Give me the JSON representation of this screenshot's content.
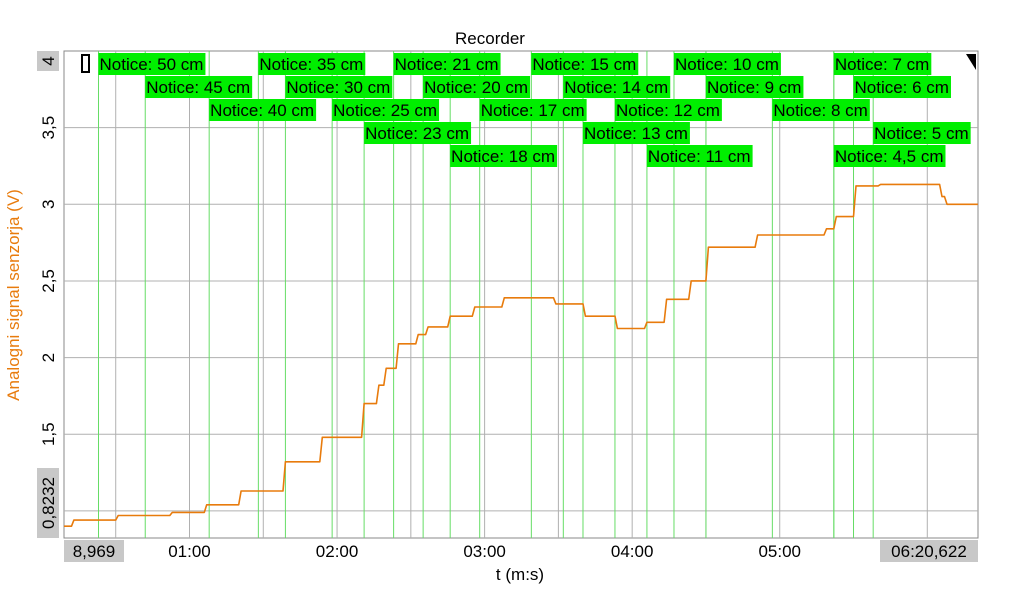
{
  "chart_data": {
    "type": "line",
    "title": "Recorder",
    "xlabel": "t (m:s)",
    "ylabel": "Analogni signal senzorja (V)",
    "x_unit": "seconds",
    "xlim": [
      8.969,
      380.622
    ],
    "ylim": [
      0.8232,
      4.0
    ],
    "x_ticks": [
      {
        "label": "8,969",
        "value": 8.969,
        "highlight": true
      },
      {
        "label": "01:00",
        "value": 60
      },
      {
        "label": "02:00",
        "value": 120
      },
      {
        "label": "03:00",
        "value": 180
      },
      {
        "label": "04:00",
        "value": 240
      },
      {
        "label": "05:00",
        "value": 300
      },
      {
        "label": "06:20,622",
        "value": 380.622,
        "highlight": true
      }
    ],
    "y_ticks": [
      {
        "label": "0,8232",
        "value": 0.8232,
        "highlight": true
      },
      {
        "label": "1,5",
        "value": 1.5
      },
      {
        "label": "2",
        "value": 2.0
      },
      {
        "label": "2,5",
        "value": 2.5
      },
      {
        "label": "3",
        "value": 3.0
      },
      {
        "label": "3,5",
        "value": 3.5
      },
      {
        "label": "4",
        "value": 4.0,
        "highlight": true
      }
    ],
    "x_gridlines": [
      30,
      60,
      90,
      120,
      150,
      180,
      210,
      240,
      270,
      300,
      330,
      360
    ],
    "y_gridlines": [
      1.0,
      1.5,
      2.0,
      2.5,
      3.0,
      3.5
    ],
    "series": [
      {
        "color": "#e87b0c",
        "x": [
          8.97,
          12.0,
          13.0,
          30.0,
          31.0,
          52.0,
          53.0,
          66.0,
          67.0,
          80.0,
          81.0,
          98.0,
          99.0,
          113.0,
          114.0,
          130.0,
          131.0,
          136.0,
          137.0,
          139.0,
          140.0,
          144.0,
          145.0,
          152.0,
          153.0,
          156.0,
          157.0,
          165.0,
          166.0,
          175.0,
          176.0,
          187.0,
          188.0,
          208.0,
          209.0,
          220.0,
          221.0,
          233.0,
          234.0,
          245.0,
          246.0,
          253.0,
          254.0,
          263.0,
          264.0,
          270.0,
          271.0,
          290.0,
          291.0,
          318.0,
          319.0,
          322.0,
          323.0,
          330.0,
          331.0,
          340.0,
          341.0,
          365.0,
          366.0,
          367.0,
          368.0,
          375.0,
          380.6
        ],
        "y": [
          0.9,
          0.9,
          0.94,
          0.94,
          0.97,
          0.97,
          0.99,
          0.99,
          1.04,
          1.04,
          1.13,
          1.13,
          1.32,
          1.32,
          1.48,
          1.48,
          1.7,
          1.7,
          1.82,
          1.82,
          1.93,
          1.93,
          2.09,
          2.09,
          2.15,
          2.15,
          2.2,
          2.2,
          2.27,
          2.27,
          2.33,
          2.33,
          2.39,
          2.39,
          2.35,
          2.35,
          2.27,
          2.27,
          2.19,
          2.19,
          2.23,
          2.23,
          2.38,
          2.38,
          2.5,
          2.5,
          2.72,
          2.72,
          2.8,
          2.8,
          2.84,
          2.84,
          2.92,
          2.92,
          3.12,
          3.12,
          3.13,
          3.13,
          3.05,
          3.05,
          3.0,
          3.0,
          3.0
        ]
      }
    ],
    "annotations": [
      {
        "label": "Notice: 50 cm",
        "x": 23,
        "row": 0
      },
      {
        "label": "Notice: 35 cm",
        "x": 88,
        "row": 0
      },
      {
        "label": "Notice: 21 cm",
        "x": 143,
        "row": 0
      },
      {
        "label": "Notice: 15 cm",
        "x": 199,
        "row": 0
      },
      {
        "label": "Notice: 10 cm",
        "x": 257,
        "row": 0
      },
      {
        "label": "Notice: 7 cm",
        "x": 322,
        "row": 0
      },
      {
        "label": "Notice: 45 cm",
        "x": 42,
        "row": 1
      },
      {
        "label": "Notice: 30 cm",
        "x": 99,
        "row": 1
      },
      {
        "label": "Notice: 20 cm",
        "x": 155,
        "row": 1
      },
      {
        "label": "Notice: 14 cm",
        "x": 212,
        "row": 1
      },
      {
        "label": "Notice: 9 cm",
        "x": 270,
        "row": 1
      },
      {
        "label": "Notice: 6 cm",
        "x": 330,
        "row": 1
      },
      {
        "label": "Notice: 40 cm",
        "x": 68,
        "row": 2
      },
      {
        "label": "Notice: 25 cm",
        "x": 118,
        "row": 2
      },
      {
        "label": "Notice: 17 cm",
        "x": 178,
        "row": 2
      },
      {
        "label": "Notice: 12 cm",
        "x": 233,
        "row": 2
      },
      {
        "label": "Notice: 8 cm",
        "x": 297,
        "row": 2
      },
      {
        "label": "Notice: 23 cm",
        "x": 131,
        "row": 3
      },
      {
        "label": "Notice: 13 cm",
        "x": 220,
        "row": 3
      },
      {
        "label": "Notice: 5 cm",
        "x": 338,
        "row": 3
      },
      {
        "label": "Notice: 18 cm",
        "x": 166,
        "row": 4
      },
      {
        "label": "Notice: 11 cm",
        "x": 246,
        "row": 4
      },
      {
        "label": "Notice: 4,5 cm",
        "x": 322,
        "row": 4
      }
    ],
    "colors": {
      "notice_bg": "#00ee00",
      "notice_line": "#66dd66",
      "grid": "#b0b0b0",
      "tick_highlight": "#c8c8c8",
      "ylabel": "#e87b0c"
    },
    "grid": true
  }
}
